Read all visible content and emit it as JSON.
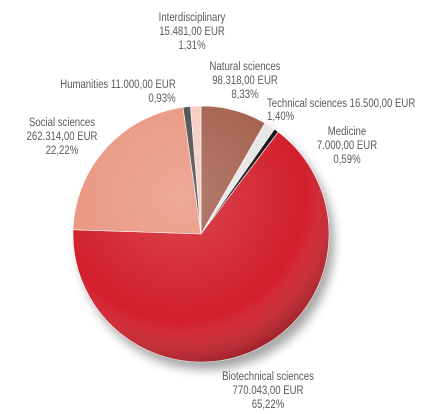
{
  "chart_data": {
    "type": "pie",
    "categories": [
      "Natural sciences",
      "Technical sciences",
      "Medicine",
      "Biotechnical sciences",
      "Social sciences",
      "Humanities",
      "Interdisciplinary"
    ],
    "amount_labels": [
      "98.318,00 EUR",
      "16.500,00 EUR",
      "7.000,00 EUR",
      "770.043,00 EUR",
      "262.314,00 EUR",
      "11.000,00 EUR",
      "15.481,00 EUR"
    ],
    "values": [
      8.33,
      1.4,
      0.59,
      65.22,
      22.22,
      0.93,
      1.31
    ],
    "value_labels": [
      "8,33%",
      "1,40%",
      "0,59%",
      "65,22%",
      "22,22%",
      "0,93%",
      "1,31%"
    ],
    "colors": [
      "#a4604f",
      "#e6e6e6",
      "#141414",
      "#d21f2b",
      "#e99680",
      "#4d4d4d",
      "#f5cbc2"
    ]
  }
}
